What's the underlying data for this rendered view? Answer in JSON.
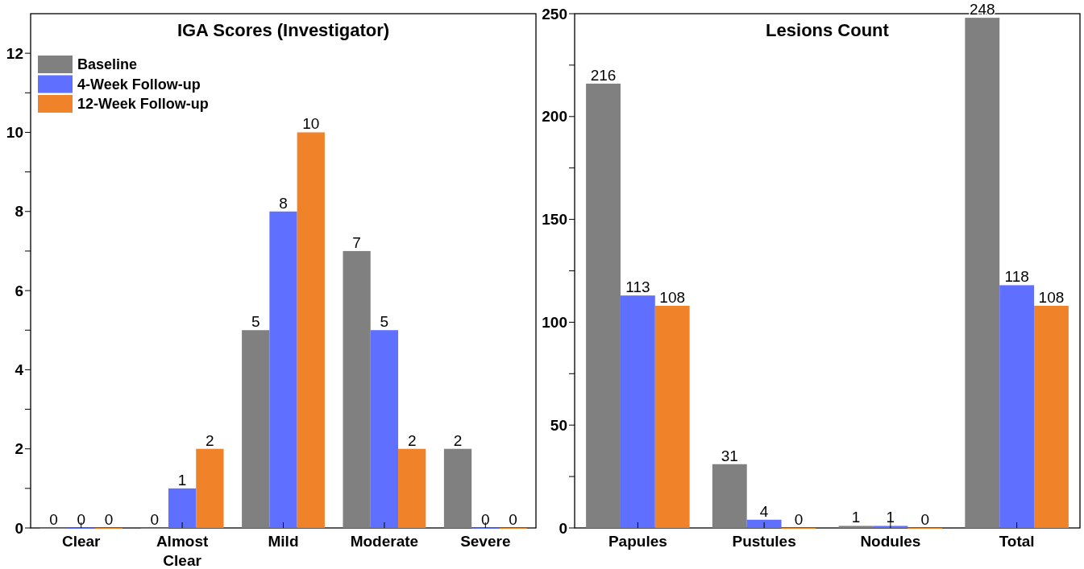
{
  "chart_data": [
    {
      "type": "bar",
      "title": "IGA Scores (Investigator)",
      "categories": [
        "Clear",
        "Almost Clear",
        "Mild",
        "Moderate",
        "Severe"
      ],
      "series": [
        {
          "name": "Baseline",
          "color": "#808080",
          "values": [
            0,
            0,
            5,
            7,
            2
          ]
        },
        {
          "name": "4-Week Follow-up",
          "color": "#5f6fff",
          "values": [
            0,
            1,
            8,
            5,
            0
          ]
        },
        {
          "name": "12-Week Follow-up",
          "color": "#f0832a",
          "values": [
            0,
            2,
            10,
            2,
            0
          ]
        }
      ],
      "ylim": [
        0,
        13
      ],
      "yticks": [
        0,
        {
          "value": 1,
          "label": null
        },
        2,
        {
          "value": 3,
          "label": null
        },
        4,
        {
          "value": 5,
          "label": null
        },
        6,
        {
          "value": 7,
          "label": null
        },
        8,
        {
          "value": 9,
          "label": null
        },
        10,
        {
          "value": 11,
          "label": null
        },
        12
      ],
      "data_labels": true,
      "grid": false,
      "legend": "top left"
    },
    {
      "type": "bar",
      "title": "Lesions Count",
      "categories": [
        "Papules",
        "Pustules",
        "Nodules",
        "Total"
      ],
      "series": [
        {
          "color": "#808080",
          "values": [
            216,
            31,
            1,
            248
          ]
        },
        {
          "color": "#5f6fff",
          "values": [
            113,
            4,
            1,
            118
          ]
        },
        {
          "color": "#f0832a",
          "values": [
            108,
            0,
            0,
            108
          ]
        }
      ],
      "ylim": [
        0,
        250
      ],
      "yticks": [
        0,
        {
          "value": 25,
          "label": null
        },
        50,
        {
          "value": 75,
          "label": null
        },
        100,
        {
          "value": 125,
          "label": null
        },
        150,
        {
          "value": 175,
          "label": null
        },
        200,
        {
          "value": 225,
          "label": null
        },
        250
      ],
      "data_labels": true,
      "grid": false,
      "legend": false
    }
  ]
}
